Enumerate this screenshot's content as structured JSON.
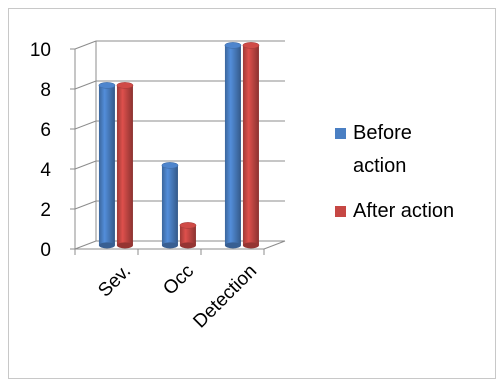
{
  "chart_data": {
    "type": "bar",
    "categories": [
      "Sev.",
      "Occ",
      "Detection"
    ],
    "series": [
      {
        "name": "Before action",
        "name_lines": [
          "Before",
          "action"
        ],
        "values": [
          8,
          4,
          10
        ],
        "color": "#4a7fc3"
      },
      {
        "name": "After action",
        "name_lines": [
          "After action"
        ],
        "values": [
          8,
          1,
          10
        ],
        "color": "#c64744"
      }
    ],
    "yticks": [
      0,
      2,
      4,
      6,
      8,
      10
    ],
    "ylim": [
      0,
      10
    ],
    "xlabel": "",
    "ylabel": "",
    "title": "",
    "grid": true,
    "style": "3d-cylinder",
    "legend_position": "right"
  }
}
